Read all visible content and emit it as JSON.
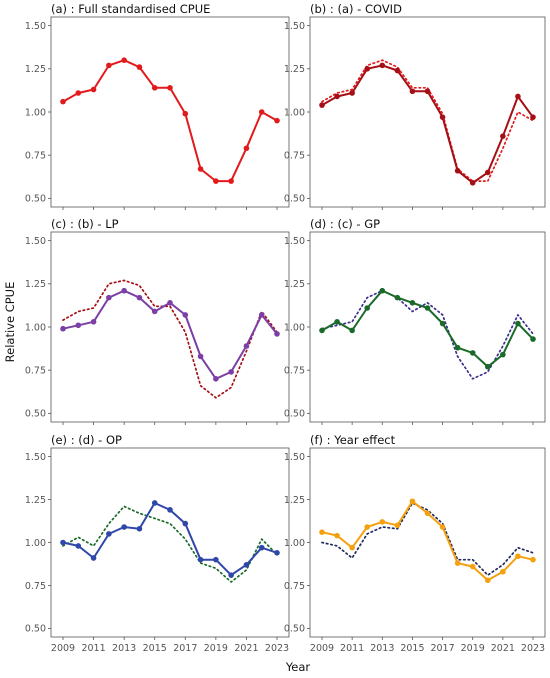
{
  "figure": {
    "ylabel": "Relative CPUE",
    "xlabel": "Year"
  },
  "chart_data": [
    {
      "type": "line",
      "title": "(a) : Full standardised CPUE",
      "x": [
        2009,
        2010,
        2011,
        2012,
        2013,
        2014,
        2015,
        2016,
        2017,
        2018,
        2019,
        2020,
        2021,
        2022,
        2023
      ],
      "xticks": [
        2009,
        2011,
        2013,
        2015,
        2017,
        2019,
        2021,
        2023
      ],
      "ylim": [
        0.45,
        1.55
      ],
      "yticks": [
        "0.50",
        "0.75",
        "1.00",
        "1.25",
        "1.50"
      ],
      "series": [
        {
          "color": "#e31a1c",
          "style": "solid",
          "values": [
            1.06,
            1.11,
            1.13,
            1.27,
            1.3,
            1.26,
            1.14,
            1.14,
            0.99,
            0.67,
            0.6,
            0.6,
            0.79,
            1.0,
            0.95
          ]
        }
      ]
    },
    {
      "type": "line",
      "title": "(b) : (a) - COVID",
      "x": [
        2009,
        2010,
        2011,
        2012,
        2013,
        2014,
        2015,
        2016,
        2017,
        2018,
        2019,
        2020,
        2021,
        2022,
        2023
      ],
      "xticks": [
        2009,
        2011,
        2013,
        2015,
        2017,
        2019,
        2021,
        2023
      ],
      "ylim": [
        0.45,
        1.55
      ],
      "yticks": [
        "0.50",
        "0.75",
        "1.00",
        "1.25",
        "1.50"
      ],
      "series": [
        {
          "color": "#e31a1c",
          "style": "dotted",
          "values": [
            1.06,
            1.11,
            1.13,
            1.27,
            1.3,
            1.26,
            1.14,
            1.14,
            0.99,
            0.67,
            0.6,
            0.6,
            0.79,
            1.0,
            0.95
          ]
        },
        {
          "color": "#a50f15",
          "style": "solid",
          "values": [
            1.04,
            1.09,
            1.11,
            1.25,
            1.27,
            1.24,
            1.12,
            1.12,
            0.97,
            0.66,
            0.59,
            0.65,
            0.86,
            1.09,
            0.97
          ]
        }
      ]
    },
    {
      "type": "line",
      "title": "(c) : (b) - LP",
      "x": [
        2009,
        2010,
        2011,
        2012,
        2013,
        2014,
        2015,
        2016,
        2017,
        2018,
        2019,
        2020,
        2021,
        2022,
        2023
      ],
      "xticks": [
        2009,
        2011,
        2013,
        2015,
        2017,
        2019,
        2021,
        2023
      ],
      "ylim": [
        0.45,
        1.55
      ],
      "yticks": [
        "0.50",
        "0.75",
        "1.00",
        "1.25",
        "1.50"
      ],
      "series": [
        {
          "color": "#a50f15",
          "style": "dotted",
          "values": [
            1.04,
            1.09,
            1.11,
            1.25,
            1.27,
            1.24,
            1.12,
            1.12,
            0.97,
            0.66,
            0.59,
            0.65,
            0.86,
            1.09,
            0.97
          ]
        },
        {
          "color": "#7b3fa5",
          "style": "solid",
          "values": [
            0.99,
            1.01,
            1.03,
            1.17,
            1.21,
            1.17,
            1.09,
            1.14,
            1.07,
            0.83,
            0.7,
            0.74,
            0.89,
            1.07,
            0.96
          ]
        }
      ]
    },
    {
      "type": "line",
      "title": "(d) : (c) - GP",
      "x": [
        2009,
        2010,
        2011,
        2012,
        2013,
        2014,
        2015,
        2016,
        2017,
        2018,
        2019,
        2020,
        2021,
        2022,
        2023
      ],
      "xticks": [
        2009,
        2011,
        2013,
        2015,
        2017,
        2019,
        2021,
        2023
      ],
      "ylim": [
        0.45,
        1.55
      ],
      "yticks": [
        "0.50",
        "0.75",
        "1.00",
        "1.25",
        "1.50"
      ],
      "series": [
        {
          "color": "#3b2f8f",
          "style": "dotted",
          "values": [
            0.99,
            1.01,
            1.03,
            1.17,
            1.21,
            1.17,
            1.09,
            1.14,
            1.07,
            0.83,
            0.7,
            0.74,
            0.89,
            1.07,
            0.96
          ]
        },
        {
          "color": "#1a6b2a",
          "style": "solid",
          "values": [
            0.98,
            1.03,
            0.98,
            1.11,
            1.21,
            1.17,
            1.14,
            1.11,
            1.02,
            0.88,
            0.85,
            0.77,
            0.84,
            1.02,
            0.93
          ]
        }
      ]
    },
    {
      "type": "line",
      "title": "(e) : (d) - OP",
      "x": [
        2009,
        2010,
        2011,
        2012,
        2013,
        2014,
        2015,
        2016,
        2017,
        2018,
        2019,
        2020,
        2021,
        2022,
        2023
      ],
      "xticks": [
        2009,
        2011,
        2013,
        2015,
        2017,
        2019,
        2021,
        2023
      ],
      "ylim": [
        0.45,
        1.55
      ],
      "yticks": [
        "0.50",
        "0.75",
        "1.00",
        "1.25",
        "1.50"
      ],
      "series": [
        {
          "color": "#1a6b2a",
          "style": "dotted",
          "values": [
            0.98,
            1.03,
            0.98,
            1.11,
            1.21,
            1.17,
            1.14,
            1.11,
            1.02,
            0.88,
            0.85,
            0.77,
            0.84,
            1.02,
            0.93
          ]
        },
        {
          "color": "#2f47a8",
          "style": "solid",
          "values": [
            1.0,
            0.98,
            0.91,
            1.05,
            1.09,
            1.08,
            1.23,
            1.19,
            1.11,
            0.9,
            0.9,
            0.81,
            0.87,
            0.97,
            0.94
          ]
        }
      ]
    },
    {
      "type": "line",
      "title": "(f) : Year effect",
      "x": [
        2009,
        2010,
        2011,
        2012,
        2013,
        2014,
        2015,
        2016,
        2017,
        2018,
        2019,
        2020,
        2021,
        2022,
        2023
      ],
      "xticks": [
        2009,
        2011,
        2013,
        2015,
        2017,
        2019,
        2021,
        2023
      ],
      "ylim": [
        0.45,
        1.55
      ],
      "yticks": [
        "0.50",
        "0.75",
        "1.00",
        "1.25",
        "1.50"
      ],
      "series": [
        {
          "color": "#1f2a5a",
          "style": "dotted",
          "values": [
            1.0,
            0.98,
            0.91,
            1.05,
            1.09,
            1.08,
            1.23,
            1.19,
            1.11,
            0.9,
            0.9,
            0.81,
            0.87,
            0.97,
            0.94
          ]
        },
        {
          "color": "#f5a00f",
          "style": "solid",
          "values": [
            1.06,
            1.04,
            0.97,
            1.09,
            1.12,
            1.1,
            1.24,
            1.17,
            1.09,
            0.88,
            0.86,
            0.78,
            0.83,
            0.92,
            0.9
          ]
        }
      ]
    }
  ]
}
